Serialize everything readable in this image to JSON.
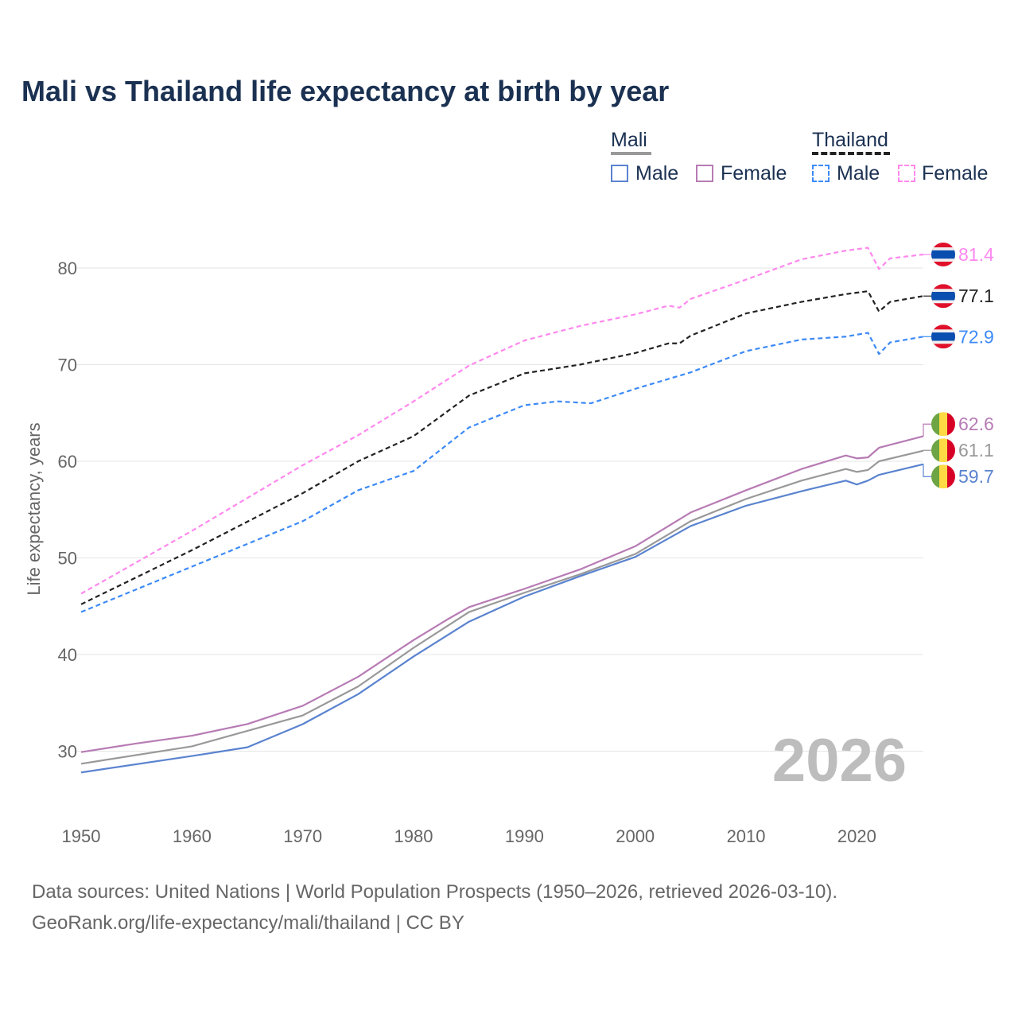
{
  "chart_data": {
    "type": "line",
    "title": "Mali vs Thailand life expectancy at birth by year",
    "xlabel": "",
    "ylabel": "Life expectancy, years",
    "xlim": [
      1950,
      2026
    ],
    "ylim": [
      24,
      86
    ],
    "xticks": [
      1950,
      1960,
      1970,
      1980,
      1990,
      2000,
      2010,
      2020
    ],
    "yticks": [
      30,
      40,
      50,
      60,
      70,
      80
    ],
    "grid": "horizontal",
    "current_year_label": "2026",
    "legend": {
      "groups": [
        {
          "name": "Mali",
          "items": [
            "Male",
            "Female"
          ]
        },
        {
          "name": "Thailand",
          "items": [
            "Male",
            "Female"
          ]
        }
      ],
      "placement": "top-right"
    },
    "series": [
      {
        "name": "Thailand Female",
        "country": "Thailand",
        "sex": "Female",
        "color": "#ff88ee",
        "dashed": true,
        "end_label": "81.4",
        "x": [
          1950,
          1960,
          1970,
          1975,
          1980,
          1985,
          1990,
          1995,
          2000,
          2003,
          2004,
          2005,
          2010,
          2015,
          2019,
          2021,
          2022,
          2023,
          2026
        ],
        "y": [
          46.3,
          52.8,
          59.6,
          62.7,
          66.2,
          69.9,
          72.5,
          74.0,
          75.2,
          76.1,
          75.9,
          76.8,
          78.8,
          80.9,
          81.8,
          82.1,
          79.9,
          81.0,
          81.4
        ]
      },
      {
        "name": "Thailand",
        "country": "Thailand",
        "sex": "Both",
        "color": "#222222",
        "dashed": true,
        "end_label": "77.1",
        "x": [
          1950,
          1960,
          1970,
          1975,
          1980,
          1985,
          1990,
          1995,
          2000,
          2003,
          2004,
          2005,
          2010,
          2015,
          2019,
          2021,
          2022,
          2023,
          2026
        ],
        "y": [
          45.2,
          50.8,
          56.7,
          60.0,
          62.6,
          66.8,
          69.1,
          70.0,
          71.2,
          72.2,
          72.2,
          73.0,
          75.3,
          76.5,
          77.3,
          77.6,
          75.5,
          76.5,
          77.1
        ]
      },
      {
        "name": "Thailand Male",
        "country": "Thailand",
        "sex": "Male",
        "color": "#3d8af7",
        "dashed": true,
        "end_label": "72.9",
        "x": [
          1950,
          1960,
          1970,
          1975,
          1980,
          1985,
          1990,
          1993,
          1996,
          2000,
          2005,
          2010,
          2015,
          2019,
          2021,
          2022,
          2023,
          2026
        ],
        "y": [
          44.4,
          49.1,
          53.8,
          57.0,
          59.0,
          63.5,
          65.8,
          66.2,
          66.0,
          67.5,
          69.2,
          71.4,
          72.6,
          72.9,
          73.3,
          71.1,
          72.3,
          72.9
        ]
      },
      {
        "name": "Mali Female",
        "country": "Mali",
        "sex": "Female",
        "color": "#b77bb4",
        "dashed": false,
        "end_label": "62.6",
        "x": [
          1950,
          1955,
          1960,
          1965,
          1970,
          1975,
          1980,
          1983,
          1985,
          1990,
          1995,
          2000,
          2005,
          2010,
          2015,
          2019,
          2020,
          2021,
          2022,
          2026
        ],
        "y": [
          29.9,
          30.8,
          31.6,
          32.8,
          34.7,
          37.7,
          41.5,
          43.6,
          44.9,
          46.8,
          48.8,
          51.2,
          54.7,
          57.0,
          59.2,
          60.6,
          60.3,
          60.4,
          61.4,
          62.6
        ]
      },
      {
        "name": "Mali",
        "country": "Mali",
        "sex": "Both",
        "color": "#999999",
        "dashed": false,
        "end_label": "61.1",
        "x": [
          1950,
          1960,
          1970,
          1975,
          1980,
          1985,
          1990,
          1995,
          2000,
          2005,
          2010,
          2015,
          2019,
          2020,
          2021,
          2022,
          2026
        ],
        "y": [
          28.7,
          30.5,
          33.7,
          36.7,
          40.7,
          44.4,
          46.4,
          48.3,
          50.4,
          53.8,
          56.1,
          58.0,
          59.2,
          58.9,
          59.1,
          60.0,
          61.1
        ]
      },
      {
        "name": "Mali Male",
        "country": "Mali",
        "sex": "Male",
        "color": "#5a83cf",
        "dashed": false,
        "end_label": "59.7",
        "x": [
          1950,
          1960,
          1965,
          1970,
          1975,
          1980,
          1985,
          1990,
          1995,
          2000,
          2005,
          2010,
          2015,
          2019,
          2020,
          2021,
          2022,
          2026
        ],
        "y": [
          27.8,
          29.5,
          30.4,
          32.8,
          35.9,
          39.8,
          43.4,
          46.0,
          48.1,
          50.1,
          53.3,
          55.4,
          56.9,
          58.0,
          57.6,
          58.0,
          58.6,
          59.7
        ]
      }
    ]
  },
  "sources": {
    "line1": "Data sources: United Nations | World Population Prospects (1950–2026, retrieved 2026-03-10).",
    "line2": "GeoRank.org/life-expectancy/mali/thailand | CC BY"
  }
}
